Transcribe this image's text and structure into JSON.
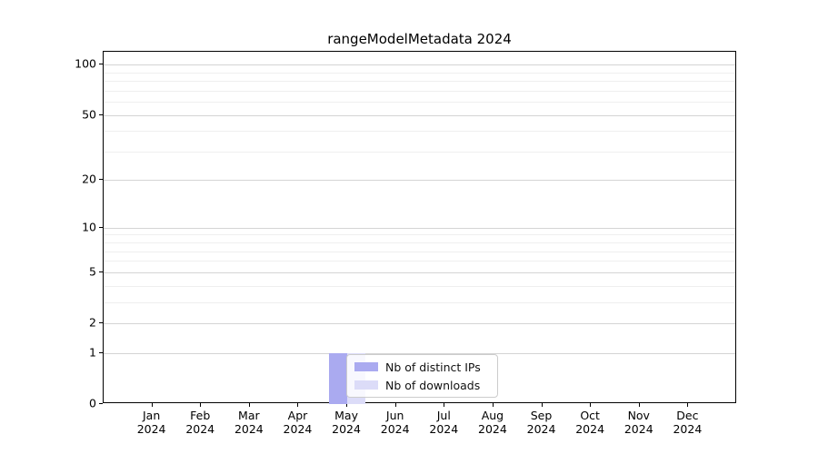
{
  "title": "rangeModelMetadata 2024",
  "chart_data": {
    "type": "bar",
    "title": "rangeModelMetadata 2024",
    "categories": [
      "Jan 2024",
      "Feb 2024",
      "Mar 2024",
      "Apr 2024",
      "May 2024",
      "Jun 2024",
      "Jul 2024",
      "Aug 2024",
      "Sep 2024",
      "Oct 2024",
      "Nov 2024",
      "Dec 2024"
    ],
    "x_tick_month_labels": [
      "Jan",
      "Feb",
      "Mar",
      "Apr",
      "May",
      "Jun",
      "Jul",
      "Aug",
      "Sep",
      "Oct",
      "Nov",
      "Dec"
    ],
    "x_tick_year_label": "2024",
    "series": [
      {
        "name": "Nb of distinct IPs",
        "color": "#aaaaf0",
        "values": [
          0,
          0,
          0,
          0,
          1,
          0,
          0,
          0,
          0,
          0,
          0,
          0
        ]
      },
      {
        "name": "Nb of downloads",
        "color": "#dcdcf8",
        "values": [
          0,
          0,
          0,
          0,
          1,
          0,
          0,
          0,
          0,
          0,
          0,
          0
        ]
      }
    ],
    "y_axis": {
      "scale": "log1p",
      "major_ticks": [
        0,
        1,
        2,
        5,
        10,
        20,
        50,
        100
      ],
      "minor_gridlines": [
        3,
        4,
        6,
        7,
        8,
        9,
        30,
        40,
        60,
        70,
        80,
        90
      ],
      "ylim": [
        0,
        120
      ]
    },
    "legend": {
      "position": "lower center"
    },
    "grid": "both",
    "colors": {
      "major_grid": "#d4d4d4",
      "minor_grid": "#efefef",
      "spine": "#000000",
      "background": "#ffffff"
    }
  }
}
